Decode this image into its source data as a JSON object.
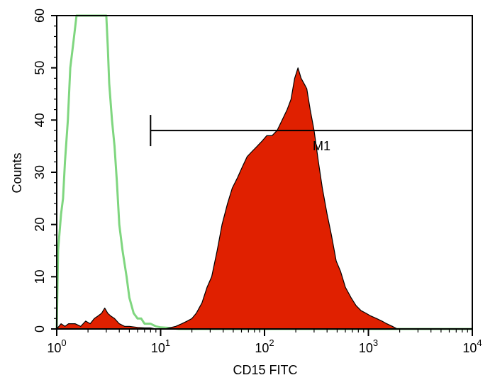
{
  "chart_data": {
    "type": "area",
    "xlabel": "CD15 FITC",
    "ylabel": "Counts",
    "xscale": "log",
    "xlim": [
      1,
      10000
    ],
    "ylim": [
      0,
      60
    ],
    "x_ticks": [
      {
        "base": "10",
        "exp": "0",
        "value": 1
      },
      {
        "base": "10",
        "exp": "1",
        "value": 10
      },
      {
        "base": "10",
        "exp": "2",
        "value": 100
      },
      {
        "base": "10",
        "exp": "3",
        "value": 1000
      },
      {
        "base": "10",
        "exp": "4",
        "value": 10000
      }
    ],
    "y_ticks": [
      "0",
      "10",
      "20",
      "30",
      "40",
      "50",
      "60"
    ],
    "gate": {
      "label": "M1",
      "x_start": 8,
      "x_end": 10000,
      "y": 38
    },
    "colors": {
      "stained": "#e02000",
      "isotype": "#7fd67f",
      "axis": "#000000"
    },
    "series": [
      {
        "style": "outline",
        "color": "#7fd67f",
        "points": [
          [
            1.0,
            0
          ],
          [
            1.03,
            15
          ],
          [
            1.06,
            18
          ],
          [
            1.1,
            22
          ],
          [
            1.15,
            25
          ],
          [
            1.2,
            32
          ],
          [
            1.28,
            40
          ],
          [
            1.35,
            50
          ],
          [
            1.45,
            55
          ],
          [
            1.55,
            60
          ],
          [
            1.7,
            60
          ],
          [
            2.0,
            60
          ],
          [
            2.5,
            60
          ],
          [
            3.0,
            60
          ],
          [
            3.1,
            54
          ],
          [
            3.2,
            47
          ],
          [
            3.4,
            40
          ],
          [
            3.6,
            35
          ],
          [
            3.8,
            28
          ],
          [
            4.0,
            20
          ],
          [
            4.3,
            15
          ],
          [
            4.7,
            10
          ],
          [
            5.0,
            6
          ],
          [
            5.5,
            3
          ],
          [
            6.0,
            2
          ],
          [
            6.5,
            2
          ],
          [
            7.0,
            1
          ],
          [
            8.0,
            1
          ],
          [
            9.0,
            0.5
          ],
          [
            10.0,
            0.3
          ],
          [
            12,
            0.2
          ],
          [
            15,
            0
          ],
          [
            10000,
            0
          ]
        ]
      },
      {
        "style": "filled",
        "color": "#e02000",
        "points": [
          [
            1.0,
            0
          ],
          [
            1.1,
            1
          ],
          [
            1.2,
            0.5
          ],
          [
            1.3,
            1
          ],
          [
            1.5,
            1
          ],
          [
            1.7,
            0.5
          ],
          [
            1.9,
            1.5
          ],
          [
            2.1,
            1
          ],
          [
            2.3,
            2
          ],
          [
            2.5,
            2.5
          ],
          [
            2.7,
            3
          ],
          [
            2.9,
            4
          ],
          [
            3.1,
            3
          ],
          [
            3.3,
            2.5
          ],
          [
            3.6,
            2
          ],
          [
            4.0,
            1
          ],
          [
            4.5,
            0.5
          ],
          [
            5.0,
            0.5
          ],
          [
            6.0,
            0.3
          ],
          [
            7.0,
            0.2
          ],
          [
            8.0,
            0.2
          ],
          [
            9.0,
            0
          ],
          [
            11,
            0
          ],
          [
            14,
            0.5
          ],
          [
            16,
            1
          ],
          [
            18,
            1.5
          ],
          [
            20,
            2
          ],
          [
            22,
            3
          ],
          [
            25,
            5
          ],
          [
            28,
            8
          ],
          [
            31,
            10
          ],
          [
            35,
            15
          ],
          [
            39,
            20
          ],
          [
            44,
            24
          ],
          [
            49,
            27
          ],
          [
            55,
            29
          ],
          [
            61,
            31
          ],
          [
            68,
            33
          ],
          [
            76,
            34
          ],
          [
            85,
            35
          ],
          [
            95,
            36
          ],
          [
            105,
            37
          ],
          [
            118,
            37
          ],
          [
            132,
            38
          ],
          [
            148,
            40
          ],
          [
            165,
            42
          ],
          [
            180,
            44
          ],
          [
            195,
            48
          ],
          [
            210,
            50
          ],
          [
            225,
            48
          ],
          [
            240,
            47
          ],
          [
            255,
            46
          ],
          [
            275,
            42
          ],
          [
            300,
            38
          ],
          [
            330,
            32
          ],
          [
            360,
            27
          ],
          [
            400,
            22
          ],
          [
            440,
            18
          ],
          [
            490,
            13
          ],
          [
            540,
            11
          ],
          [
            600,
            8
          ],
          [
            680,
            6
          ],
          [
            760,
            4.5
          ],
          [
            850,
            3.5
          ],
          [
            950,
            3
          ],
          [
            1050,
            2.5
          ],
          [
            1200,
            2
          ],
          [
            1350,
            1.5
          ],
          [
            1500,
            1
          ],
          [
            1700,
            0.5
          ],
          [
            1900,
            0
          ],
          [
            10000,
            0
          ]
        ]
      }
    ]
  }
}
